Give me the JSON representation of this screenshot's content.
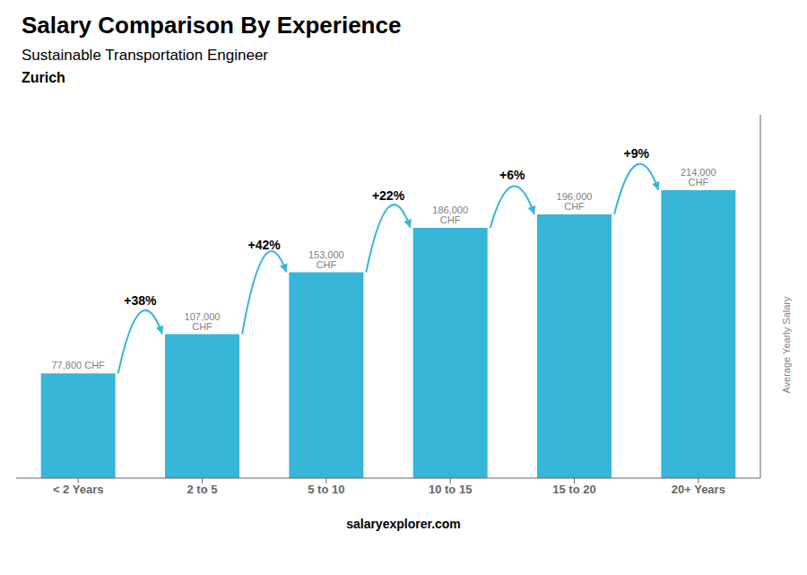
{
  "chart_data": {
    "type": "bar",
    "title": "Salary Comparison By Experience",
    "subtitle": "Sustainable Transportation Engineer",
    "city": "Zurich",
    "ylabel": "Average Yearly Salary",
    "categories": [
      "< 2 Years",
      "2 to 5",
      "5 to 10",
      "10 to 15",
      "15 to 20",
      "20+ Years"
    ],
    "values": [
      77800,
      107000,
      153000,
      186000,
      196000,
      214000
    ],
    "value_labels": [
      "77,800 CHF",
      "107,000 CHF",
      "153,000 CHF",
      "186,000 CHF",
      "196,000 CHF",
      "214,000 CHF"
    ],
    "pct_changes": [
      null,
      "+38%",
      "+42%",
      "+22%",
      "+6%",
      "+9%"
    ],
    "color": "#38b6d8",
    "ylim": [
      0,
      270000
    ],
    "data_labels": true,
    "tick_labels": "x",
    "grid": false,
    "footer_text": "salaryexplorer.com"
  }
}
